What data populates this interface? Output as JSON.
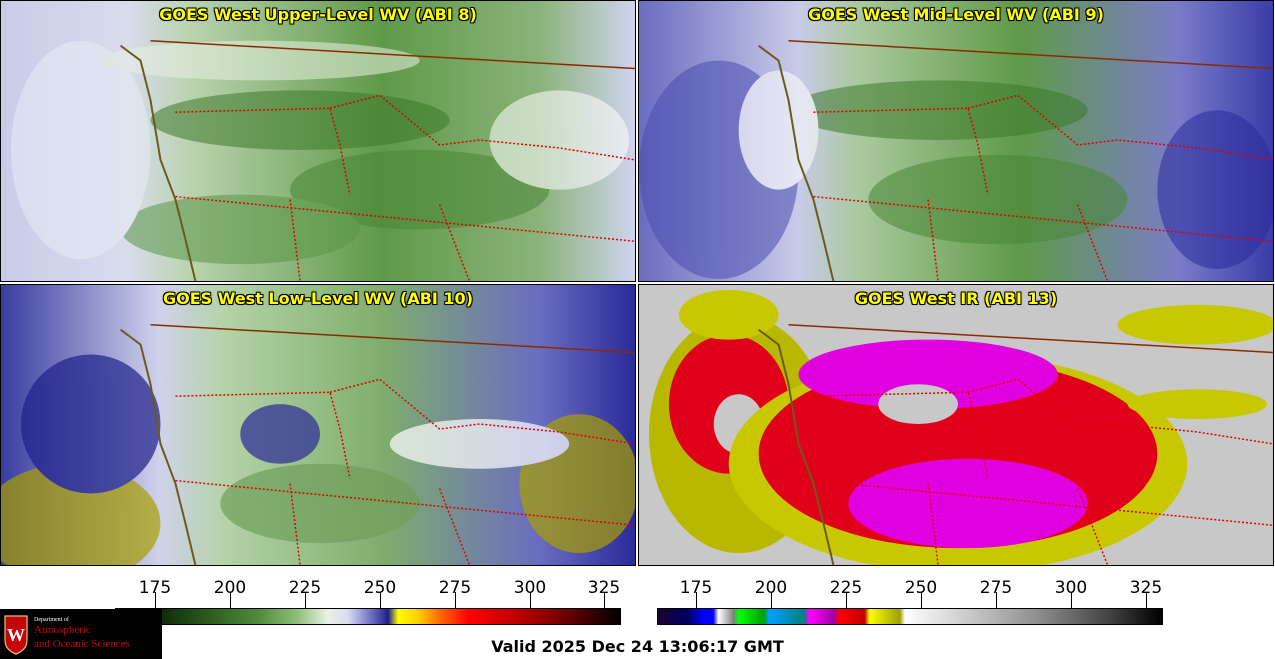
{
  "panels": [
    {
      "title": "GOES West Upper-Level WV (ABI 8)"
    },
    {
      "title": "GOES West Mid-Level WV (ABI 9)"
    },
    {
      "title": "GOES West Low-Level WV (ABI 10)"
    },
    {
      "title": "GOES West IR (ABI 13)"
    }
  ],
  "colorbars": {
    "wv_ticks": [
      "175",
      "200",
      "225",
      "250",
      "275",
      "300",
      "325"
    ],
    "ir_ticks": [
      "175",
      "200",
      "225",
      "250",
      "275",
      "300",
      "325"
    ]
  },
  "logo": {
    "line1": "Department of",
    "line2": "Atmospheric",
    "line3": "and Oceanic Sciences",
    "crest_letter": "W"
  },
  "valid_time": "Valid 2025 Dec 24 13:06:17 GMT",
  "colors": {
    "coastline": "#6b5a1e",
    "state_border": "#e00000",
    "intl_border": "#8b2a00",
    "title_text": "#ffff00",
    "wv_moist_green": "#3f7a2a",
    "wv_dry_blue": "#2a2a9a",
    "ir_cold_red": "#e0001a",
    "ir_coldest_magenta": "#e000e0"
  }
}
